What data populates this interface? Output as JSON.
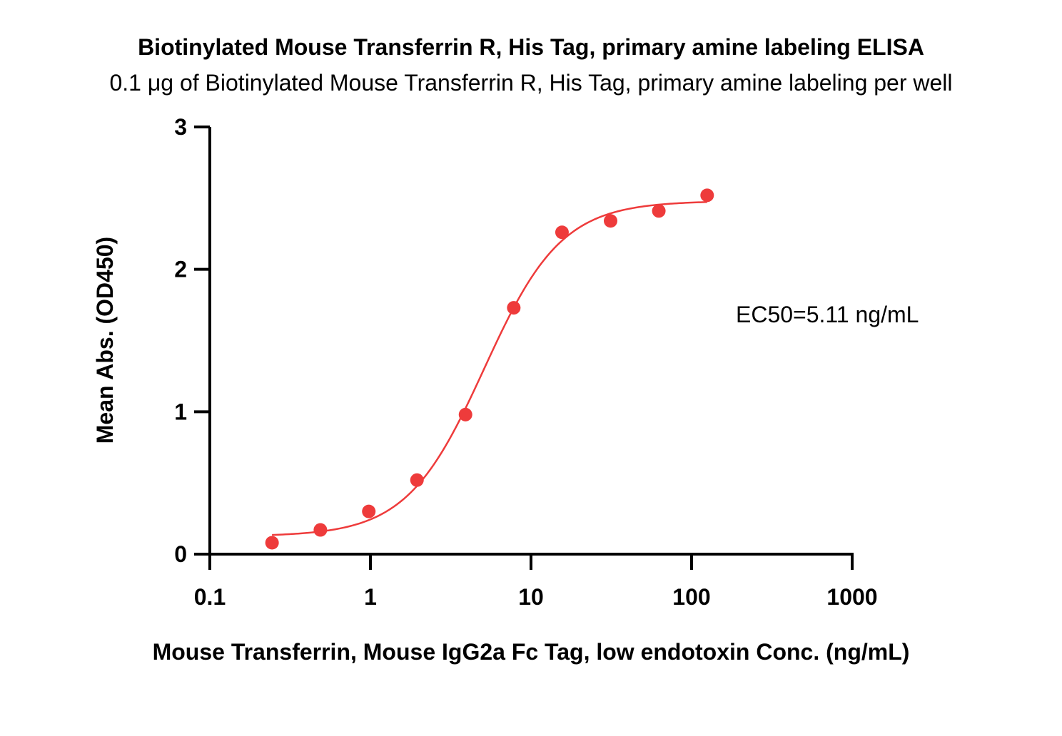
{
  "chart_data": {
    "type": "scatter",
    "title": "Biotinylated Mouse Transferrin R, His Tag, primary amine labeling ELISA",
    "subtitle": "0.1 μg of Biotinylated Mouse Transferrin R, His Tag, primary amine labeling per well",
    "xlabel": "Mouse Transferrin, Mouse IgG2a Fc Tag, low endotoxin Conc. (ng/mL)",
    "ylabel": "Mean Abs. (OD450)",
    "x_scale": "log",
    "xlim": [
      0.1,
      1000
    ],
    "ylim": [
      0,
      3
    ],
    "x_ticks": [
      0.1,
      1,
      10,
      100,
      1000
    ],
    "x_tick_labels": [
      "0.1",
      "1",
      "10",
      "100",
      "1000"
    ],
    "y_ticks": [
      0,
      1,
      2,
      3
    ],
    "y_tick_labels": [
      "0",
      "1",
      "2",
      "3"
    ],
    "grid": false,
    "annotation": "EC50=5.11 ng/mL",
    "color": "#ee3b3b",
    "points": {
      "x": [
        0.244,
        0.488,
        0.977,
        1.95,
        3.91,
        7.81,
        15.6,
        31.3,
        62.5,
        125
      ],
      "y": [
        0.08,
        0.17,
        0.3,
        0.52,
        0.98,
        1.73,
        2.26,
        2.34,
        2.41,
        2.52
      ]
    },
    "fit": {
      "model": "4PL",
      "bottom": 0.125,
      "top": 2.48,
      "ec50": 5.11,
      "hill": 1.8,
      "x_range": [
        0.244,
        125
      ]
    }
  }
}
